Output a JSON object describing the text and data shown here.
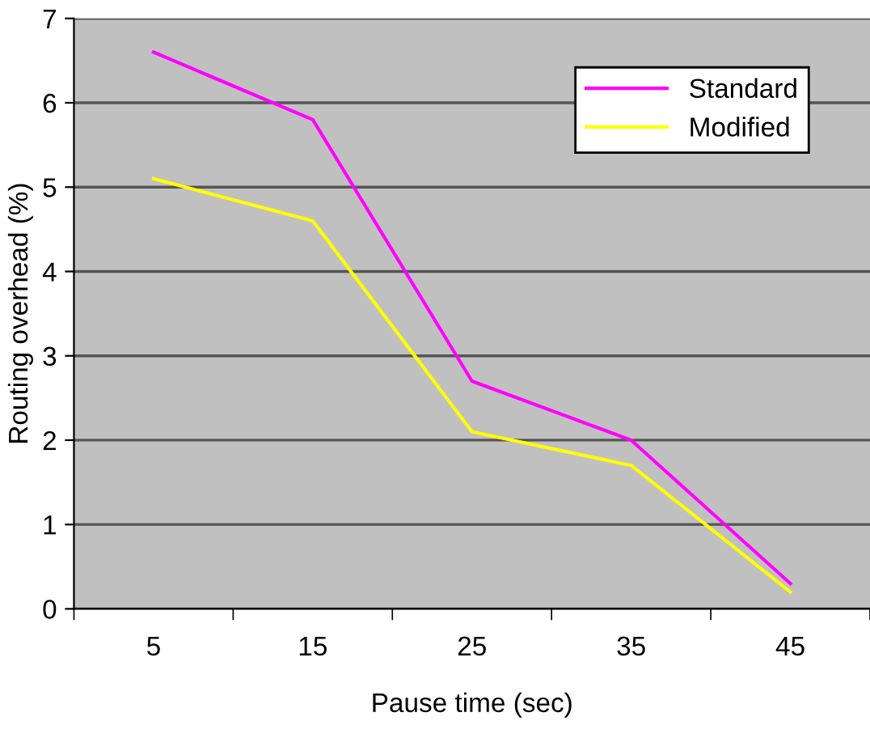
{
  "chart_data": {
    "type": "line",
    "xlabel": "Pause time (sec)",
    "ylabel": "Routing overhead (%)",
    "categories": [
      "5",
      "15",
      "25",
      "35",
      "45"
    ],
    "series": [
      {
        "name": "Standard",
        "color": "#ff00ff",
        "values": [
          6.6,
          5.8,
          2.7,
          2.0,
          0.3
        ]
      },
      {
        "name": "Modified",
        "color": "#ffff00",
        "values": [
          5.1,
          4.6,
          2.1,
          1.7,
          0.2
        ]
      }
    ],
    "ylim": [
      0,
      7
    ],
    "yticks": [
      0,
      1,
      2,
      3,
      4,
      5,
      6,
      7
    ],
    "grid": "y",
    "legend": "top right",
    "marker": "none",
    "line_style": "solid"
  }
}
